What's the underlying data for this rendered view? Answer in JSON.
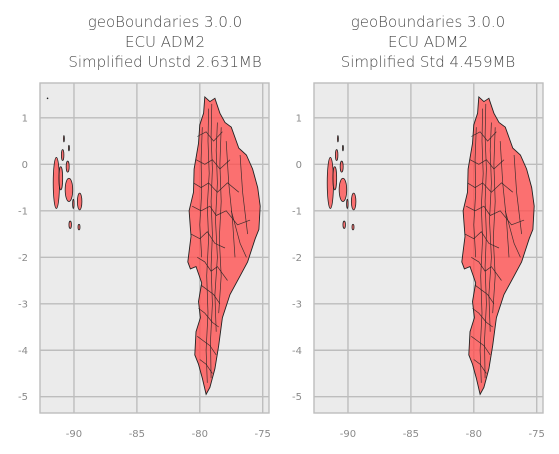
{
  "chart_data": [
    {
      "type": "map",
      "title_lines": [
        "geoBoundaries 3.0.0",
        "ECU ADM2",
        "Simplified Unstd 2.631MB"
      ],
      "x_ticks": [
        "-90",
        "-85",
        "-80",
        "-75"
      ],
      "x_tick_values": [
        -90,
        -85,
        -80,
        -75
      ],
      "y_ticks": [
        "1",
        "0",
        "-1",
        "-2",
        "-3",
        "-4",
        "-5"
      ],
      "y_tick_values": [
        1,
        0,
        -1,
        -2,
        -3,
        -4,
        -5
      ],
      "xlim": [
        -92.7,
        -74.5
      ],
      "ylim": [
        -5.35,
        1.75
      ],
      "grid": true,
      "fill_color": "#ff4d4d",
      "edge_color": "#222222",
      "stray_point": true
    },
    {
      "type": "map",
      "title_lines": [
        "geoBoundaries 3.0.0",
        "ECU ADM2",
        "Simplified Std 4.459MB"
      ],
      "x_ticks": [
        "-90",
        "-85",
        "-80",
        "-75"
      ],
      "x_tick_values": [
        -90,
        -85,
        -80,
        -75
      ],
      "y_ticks": [
        "1",
        "0",
        "-1",
        "-2",
        "-3",
        "-4",
        "-5"
      ],
      "y_tick_values": [
        1,
        0,
        -1,
        -2,
        -3,
        -4,
        -5
      ],
      "xlim": [
        -92.7,
        -74.5
      ],
      "ylim": [
        -5.35,
        1.75
      ],
      "grid": true,
      "fill_color": "#ff4d4d",
      "edge_color": "#222222",
      "stray_point": false
    }
  ],
  "colors": {
    "panel_bg": "#ebebeb",
    "grid": "#bdbdbd",
    "tick_text": "#8a8a8a",
    "title_text": "#4a4a4a"
  }
}
